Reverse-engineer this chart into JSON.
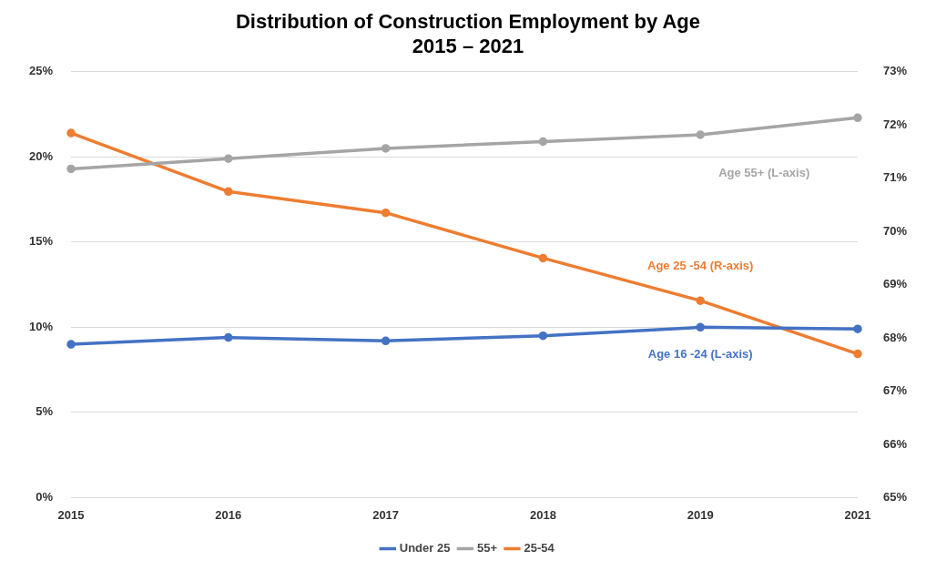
{
  "chart_data": {
    "type": "line",
    "title": "Distribution of Construction Employment by Age",
    "subtitle": "2015 – 2021",
    "categories": [
      "2015",
      "2016",
      "2017",
      "2018",
      "2019",
      "2021"
    ],
    "series": [
      {
        "name": "Under 25",
        "color": "#4472c4",
        "values": [
          9.0,
          9.4,
          9.2,
          9.5,
          10.0,
          9.9
        ]
      },
      {
        "name": "55+",
        "color": "#a5a5a5",
        "values": [
          19.3,
          19.9,
          20.5,
          20.9,
          21.3,
          22.3
        ]
      },
      {
        "name": "25-54",
        "color": "#ed7d31",
        "axis": "y2",
        "values": [
          71.85,
          70.75,
          70.35,
          69.5,
          68.7,
          67.7
        ]
      }
    ],
    "annotations": [
      "Age 16 -24 (L-axis)",
      "Age 55+ (L-axis)",
      "Age 25 -54 (R-axis)"
    ],
    "ylim": [
      0,
      25
    ],
    "yticks": [
      {
        "value": 0,
        "label": "0%"
      },
      {
        "value": 5,
        "label": "5%"
      },
      {
        "value": 10,
        "label": "10%"
      },
      {
        "value": 15,
        "label": "15%"
      },
      {
        "value": 20,
        "label": "20%"
      },
      {
        "value": 25,
        "label": "25%"
      }
    ],
    "y2lim": [
      65,
      73
    ],
    "y2ticks": [
      {
        "value": 65,
        "label": "65%"
      },
      {
        "value": 66,
        "label": "66%"
      },
      {
        "value": 67,
        "label": "67%"
      },
      {
        "value": 68,
        "label": "68%"
      },
      {
        "value": 69,
        "label": "69%"
      },
      {
        "value": 70,
        "label": "70%"
      },
      {
        "value": 71,
        "label": "71%"
      },
      {
        "value": 72,
        "label": "72%"
      },
      {
        "value": 73,
        "label": "73%"
      }
    ],
    "grid": "y",
    "legend": "bottom",
    "marker": "circle",
    "line_style": "solid"
  }
}
